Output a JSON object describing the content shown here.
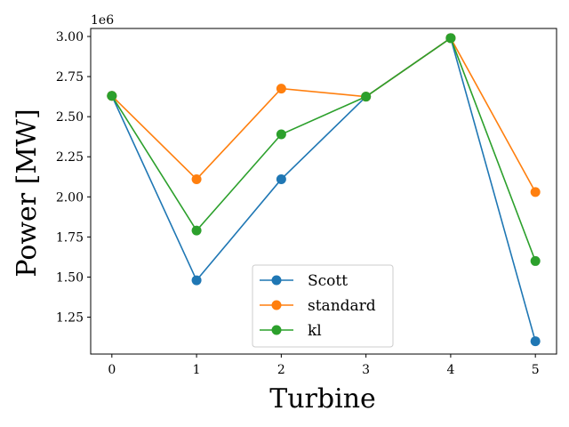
{
  "chart_data": {
    "type": "line",
    "x": [
      0,
      1,
      2,
      3,
      4,
      5
    ],
    "xlabel": "Turbine",
    "ylabel": "Power [MW]",
    "y_offset_label": "1e6",
    "xlim": [
      -0.25,
      5.25
    ],
    "ylim": [
      1020000,
      3050000
    ],
    "xticks": [
      0,
      1,
      2,
      3,
      4,
      5
    ],
    "yticks": [
      1.25,
      1.5,
      1.75,
      2.0,
      2.25,
      2.5,
      2.75,
      3.0
    ],
    "ytick_labels": [
      "1.25",
      "1.50",
      "1.75",
      "2.00",
      "2.25",
      "2.50",
      "2.75",
      "3.00"
    ],
    "grid": false,
    "legend_position": "lower-center",
    "series": [
      {
        "name": "Scott",
        "color": "#1f77b4",
        "values": [
          2630000,
          1480000,
          2110000,
          2625000,
          2990000,
          1100000
        ]
      },
      {
        "name": "standard",
        "color": "#ff7f0e",
        "values": [
          2630000,
          2110000,
          2675000,
          2625000,
          2990000,
          2030000
        ]
      },
      {
        "name": "kl",
        "color": "#2ca02c",
        "values": [
          2630000,
          1790000,
          2390000,
          2625000,
          2990000,
          1600000
        ]
      }
    ]
  }
}
